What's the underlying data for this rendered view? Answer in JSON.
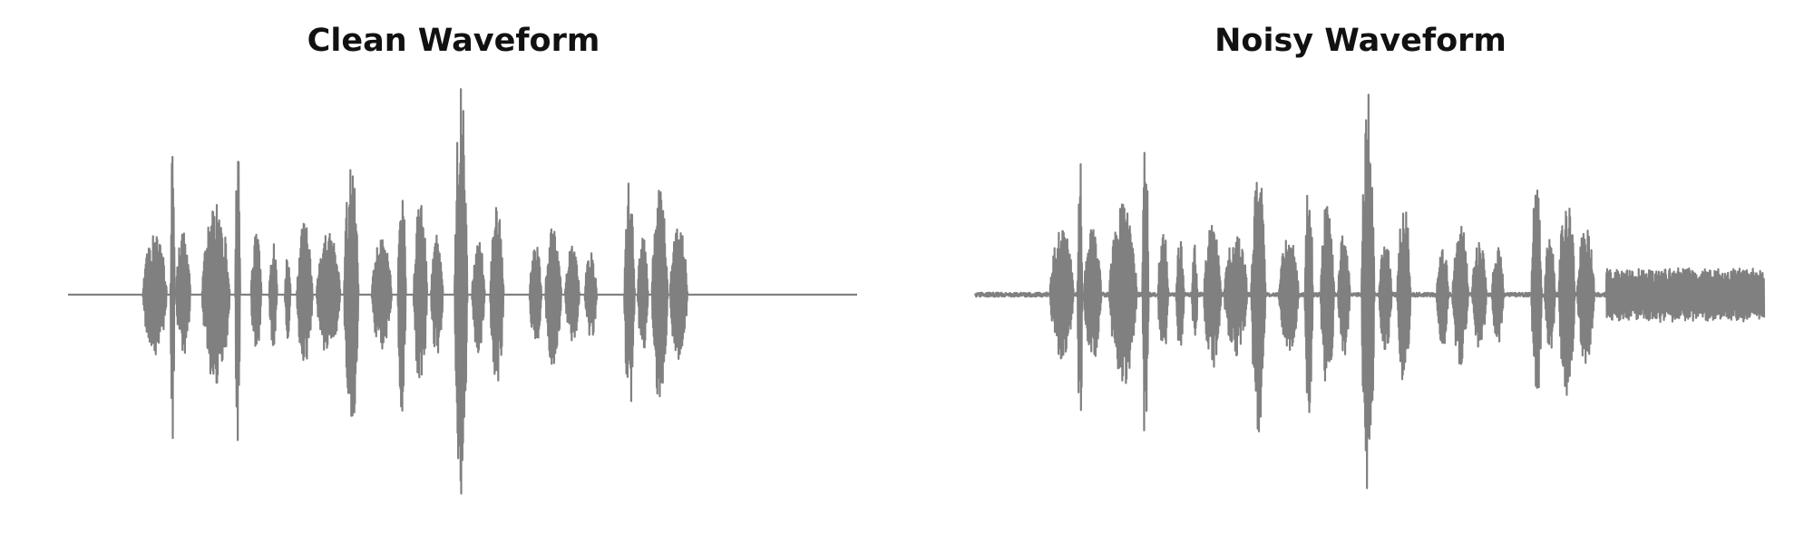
{
  "chart_data": [
    {
      "type": "line",
      "title": "Clean Waveform",
      "xlabel": "",
      "ylabel": "",
      "axes_visible": false,
      "xlim": [
        0,
        1.0
      ],
      "ylim": [
        -1.0,
        1.0
      ],
      "line_color": "#808080",
      "baseline_noise": 0.0,
      "bursts": [
        {
          "start": 0.095,
          "end": 0.125,
          "amp": 0.3
        },
        {
          "start": 0.13,
          "end": 0.135,
          "amp": 0.72
        },
        {
          "start": 0.137,
          "end": 0.155,
          "amp": 0.3
        },
        {
          "start": 0.17,
          "end": 0.205,
          "amp": 0.44
        },
        {
          "start": 0.212,
          "end": 0.218,
          "amp": 0.8
        },
        {
          "start": 0.232,
          "end": 0.245,
          "amp": 0.3
        },
        {
          "start": 0.255,
          "end": 0.265,
          "amp": 0.25
        },
        {
          "start": 0.275,
          "end": 0.282,
          "amp": 0.22
        },
        {
          "start": 0.29,
          "end": 0.31,
          "amp": 0.36
        },
        {
          "start": 0.315,
          "end": 0.345,
          "amp": 0.3
        },
        {
          "start": 0.35,
          "end": 0.368,
          "amp": 0.66
        },
        {
          "start": 0.385,
          "end": 0.41,
          "amp": 0.28
        },
        {
          "start": 0.418,
          "end": 0.428,
          "amp": 0.58
        },
        {
          "start": 0.438,
          "end": 0.455,
          "amp": 0.46
        },
        {
          "start": 0.46,
          "end": 0.475,
          "amp": 0.3
        },
        {
          "start": 0.49,
          "end": 0.506,
          "amp": 1.0
        },
        {
          "start": 0.512,
          "end": 0.528,
          "amp": 0.28
        },
        {
          "start": 0.535,
          "end": 0.552,
          "amp": 0.45
        },
        {
          "start": 0.585,
          "end": 0.6,
          "amp": 0.25
        },
        {
          "start": 0.605,
          "end": 0.625,
          "amp": 0.35
        },
        {
          "start": 0.63,
          "end": 0.648,
          "amp": 0.24
        },
        {
          "start": 0.655,
          "end": 0.67,
          "amp": 0.22
        },
        {
          "start": 0.705,
          "end": 0.718,
          "amp": 0.58
        },
        {
          "start": 0.722,
          "end": 0.735,
          "amp": 0.28
        },
        {
          "start": 0.74,
          "end": 0.76,
          "amp": 0.52
        },
        {
          "start": 0.763,
          "end": 0.785,
          "amp": 0.34
        }
      ]
    },
    {
      "type": "line",
      "title": "Noisy Waveform",
      "xlabel": "",
      "ylabel": "",
      "axes_visible": false,
      "xlim": [
        0,
        1.0
      ],
      "ylim": [
        -1.0,
        1.0
      ],
      "line_color": "#808080",
      "baseline_noise": 0.02,
      "bursts": [
        {
          "start": 0.095,
          "end": 0.125,
          "amp": 0.32
        },
        {
          "start": 0.13,
          "end": 0.136,
          "amp": 0.72
        },
        {
          "start": 0.138,
          "end": 0.16,
          "amp": 0.32
        },
        {
          "start": 0.17,
          "end": 0.205,
          "amp": 0.44
        },
        {
          "start": 0.212,
          "end": 0.22,
          "amp": 0.78
        },
        {
          "start": 0.232,
          "end": 0.245,
          "amp": 0.32
        },
        {
          "start": 0.255,
          "end": 0.265,
          "amp": 0.27
        },
        {
          "start": 0.275,
          "end": 0.282,
          "amp": 0.24
        },
        {
          "start": 0.29,
          "end": 0.312,
          "amp": 0.36
        },
        {
          "start": 0.316,
          "end": 0.345,
          "amp": 0.3
        },
        {
          "start": 0.35,
          "end": 0.368,
          "amp": 0.66
        },
        {
          "start": 0.385,
          "end": 0.41,
          "amp": 0.28
        },
        {
          "start": 0.418,
          "end": 0.428,
          "amp": 0.58
        },
        {
          "start": 0.438,
          "end": 0.455,
          "amp": 0.46
        },
        {
          "start": 0.46,
          "end": 0.475,
          "amp": 0.32
        },
        {
          "start": 0.49,
          "end": 0.506,
          "amp": 1.0
        },
        {
          "start": 0.512,
          "end": 0.528,
          "amp": 0.28
        },
        {
          "start": 0.535,
          "end": 0.552,
          "amp": 0.45
        },
        {
          "start": 0.585,
          "end": 0.6,
          "amp": 0.25
        },
        {
          "start": 0.605,
          "end": 0.625,
          "amp": 0.35
        },
        {
          "start": 0.63,
          "end": 0.648,
          "amp": 0.26
        },
        {
          "start": 0.655,
          "end": 0.67,
          "amp": 0.24
        },
        {
          "start": 0.705,
          "end": 0.718,
          "amp": 0.58
        },
        {
          "start": 0.722,
          "end": 0.735,
          "amp": 0.28
        },
        {
          "start": 0.74,
          "end": 0.76,
          "amp": 0.52
        },
        {
          "start": 0.763,
          "end": 0.785,
          "amp": 0.34
        }
      ],
      "tail": {
        "start": 0.8,
        "end": 1.0,
        "amp": 0.13
      }
    }
  ]
}
